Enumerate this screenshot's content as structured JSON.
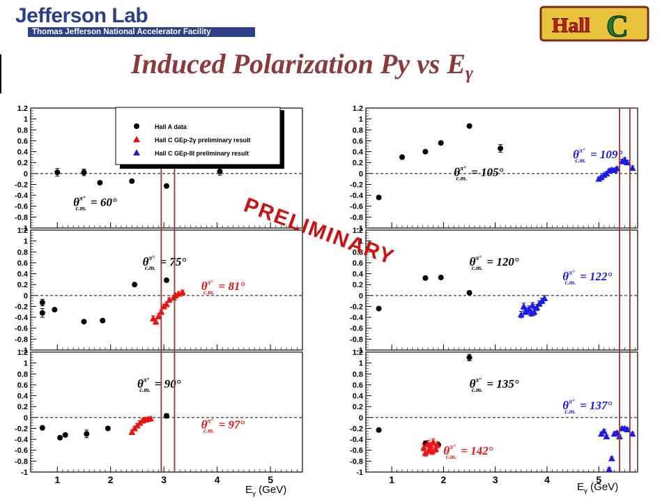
{
  "header": {
    "org_name": "Jefferson Lab",
    "org_subtitle": "Thomas Jefferson National Accelerator Facility",
    "hall_logo_text": "Hall C",
    "title_main": "Induced Polarization Py vs E",
    "title_sub": "γ"
  },
  "watermark": "PRELIMINARY",
  "x_axis_label": {
    "main": "E",
    "sub": "γ",
    "unit": " (GeV)"
  },
  "colors": {
    "hallA": "#000000",
    "gep2g": "#ee1111",
    "gep3": "#1a1ae6",
    "cut_lines": "#a03030",
    "title": "#8a3a3a",
    "watermark": "#cc1111",
    "jlab_blue": "#2b3f8a"
  },
  "legend": {
    "entries": [
      {
        "label": "Hall A data",
        "series": "hallA",
        "marker": "circle"
      },
      {
        "label": "Hall C GEp-2γ preliminary result",
        "series": "gep2g",
        "marker": "triangle"
      },
      {
        "label": "Hall C GEp-III preliminary result",
        "series": "gep3",
        "marker": "triangle"
      }
    ]
  },
  "chart_data": [
    {
      "type": "scatter",
      "xlim": [
        0.5,
        5.6
      ],
      "ylim": [
        -1,
        1.2
      ],
      "yticks": [
        "1.2",
        "1",
        "0.8",
        "0.6",
        "0.4",
        "0.2",
        "0",
        "-0.2",
        "-0.4",
        "-0.6",
        "-0.8",
        "-1"
      ],
      "xticks": [],
      "reference_line_y": 0,
      "cut_lines_x": [
        2.95,
        3.2
      ],
      "angle_labels": [
        {
          "text": "θ",
          "sup": "π°",
          "sub": "c.m.",
          "value": "= 60°",
          "series": "hallA",
          "x": 1.3,
          "y": -0.6
        }
      ],
      "series": [
        {
          "id": "hallA",
          "points": [
            [
              1.0,
              0.02,
              0.07
            ],
            [
              1.5,
              0.02,
              0.06
            ],
            [
              1.8,
              -0.17,
              0.03
            ],
            [
              2.4,
              -0.14,
              0.03
            ],
            [
              3.05,
              -0.23,
              0.03
            ],
            [
              4.05,
              0.04,
              0.07
            ]
          ]
        }
      ]
    },
    {
      "type": "scatter",
      "xlim": [
        0.5,
        5.6
      ],
      "ylim": [
        -1,
        1.2
      ],
      "yticks": [
        "1.2",
        "1",
        "0.8",
        "0.6",
        "0.4",
        "0.2",
        "0",
        "-0.2",
        "-0.4",
        "-0.6",
        "-0.8",
        "-1"
      ],
      "xticks": [],
      "reference_line_y": 0,
      "cut_lines_x": [
        2.95,
        3.2
      ],
      "angle_labels": [
        {
          "text": "θ",
          "sup": "π°",
          "sub": "c.m.",
          "value": "= 75°",
          "series": "hallA",
          "x": 2.6,
          "y": 0.55
        },
        {
          "text": "θ",
          "sup": "π°",
          "sub": "c.m.",
          "value": "= 81°",
          "series": "gep2g",
          "x": 3.7,
          "y": 0.1
        }
      ],
      "series": [
        {
          "id": "hallA",
          "points": [
            [
              0.72,
              -0.13,
              0.06
            ],
            [
              0.72,
              -0.32,
              0.08
            ],
            [
              0.95,
              -0.26,
              0.03
            ],
            [
              1.5,
              -0.48,
              0.03
            ],
            [
              1.85,
              -0.46,
              0.03
            ],
            [
              2.45,
              0.2,
              0.03
            ],
            [
              3.05,
              0.28,
              0.03
            ]
          ]
        },
        {
          "id": "gep2g",
          "points": [
            [
              2.8,
              -0.42,
              0.05
            ],
            [
              2.85,
              -0.48,
              0.05
            ],
            [
              2.9,
              -0.38,
              0.05
            ],
            [
              2.95,
              -0.3,
              0.04
            ],
            [
              3.0,
              -0.2,
              0.04
            ],
            [
              3.05,
              -0.16,
              0.04
            ],
            [
              3.1,
              -0.08,
              0.04
            ],
            [
              3.18,
              -0.04,
              0.04
            ],
            [
              3.22,
              0.0,
              0.04
            ],
            [
              3.28,
              0.03,
              0.04
            ],
            [
              3.35,
              0.06,
              0.04
            ]
          ]
        }
      ]
    },
    {
      "type": "scatter",
      "xlim": [
        0.5,
        5.6
      ],
      "ylim": [
        -1,
        1.2
      ],
      "yticks": [
        "1.2",
        "1",
        "0.8",
        "0.6",
        "0.4",
        "0.2",
        "0",
        "-0.2",
        "-0.4",
        "-0.6",
        "-0.8",
        "-1"
      ],
      "xticks": [
        "1",
        "2",
        "3",
        "4",
        "5"
      ],
      "reference_line_y": 0,
      "cut_lines_x": [
        2.95,
        3.2
      ],
      "angle_labels": [
        {
          "text": "θ",
          "sup": "π°",
          "sub": "c.m.",
          "value": "= 90°",
          "series": "hallA",
          "x": 2.5,
          "y": 0.55
        },
        {
          "text": "θ",
          "sup": "π°",
          "sub": "c.m.",
          "value": "= 97°",
          "series": "gep2g",
          "x": 3.7,
          "y": -0.2
        }
      ],
      "series": [
        {
          "id": "hallA",
          "points": [
            [
              0.72,
              -0.19,
              0.03
            ],
            [
              1.05,
              -0.37,
              0.03
            ],
            [
              1.15,
              -0.32,
              0.03
            ],
            [
              1.55,
              -0.3,
              0.07
            ],
            [
              1.95,
              -0.2,
              0.03
            ],
            [
              3.05,
              0.03,
              0.04
            ]
          ]
        },
        {
          "id": "gep2g",
          "points": [
            [
              2.4,
              -0.27,
              0.04
            ],
            [
              2.45,
              -0.2,
              0.04
            ],
            [
              2.5,
              -0.15,
              0.04
            ],
            [
              2.55,
              -0.1,
              0.04
            ],
            [
              2.6,
              -0.06,
              0.04
            ],
            [
              2.65,
              -0.04,
              0.03
            ],
            [
              2.7,
              -0.03,
              0.03
            ],
            [
              2.75,
              -0.02,
              0.03
            ]
          ]
        }
      ]
    },
    {
      "type": "scatter",
      "xlim": [
        0.5,
        5.75
      ],
      "ylim": [
        -1,
        1.2
      ],
      "yticks": [
        "1.2",
        "1",
        "0.8",
        "0.6",
        "0.4",
        "0.2",
        "0",
        "-0.2",
        "-0.4",
        "-0.6",
        "-0.8",
        "-1"
      ],
      "xticks": [],
      "reference_line_y": 0,
      "cut_lines_x": [
        5.4,
        5.6
      ],
      "angle_labels": [
        {
          "text": "θ",
          "sup": "π°",
          "sub": "c.m.",
          "value": "= 105°",
          "series": "hallA",
          "x": 2.2,
          "y": -0.05
        },
        {
          "text": "θ",
          "sup": "π°",
          "sub": "c.m.",
          "value": "= 109°",
          "series": "gep3",
          "x": 4.5,
          "y": 0.28
        }
      ],
      "series": [
        {
          "id": "hallA",
          "points": [
            [
              0.75,
              -0.44,
              0.03
            ],
            [
              1.2,
              0.3,
              0.03
            ],
            [
              1.65,
              0.4,
              0.03
            ],
            [
              1.95,
              0.56,
              0.03
            ],
            [
              2.5,
              0.87,
              0.03
            ],
            [
              3.1,
              0.46,
              0.07
            ]
          ]
        },
        {
          "id": "gep3",
          "points": [
            [
              5.0,
              -0.1,
              0.03
            ],
            [
              5.05,
              -0.07,
              0.03
            ],
            [
              5.1,
              -0.03,
              0.03
            ],
            [
              5.15,
              0.0,
              0.03
            ],
            [
              5.2,
              0.05,
              0.03
            ],
            [
              5.25,
              0.07,
              0.03
            ],
            [
              5.3,
              0.06,
              0.03
            ],
            [
              5.35,
              0.09,
              0.03
            ],
            [
              5.45,
              0.22,
              0.04
            ],
            [
              5.5,
              0.25,
              0.04
            ],
            [
              5.55,
              0.2,
              0.04
            ],
            [
              5.65,
              0.1,
              0.04
            ]
          ]
        }
      ]
    },
    {
      "type": "scatter",
      "xlim": [
        0.5,
        5.75
      ],
      "ylim": [
        -1,
        1.2
      ],
      "yticks": [
        "1.2",
        "1",
        "0.8",
        "0.6",
        "0.4",
        "0.2",
        "0",
        "-0.2",
        "-0.4",
        "-0.6",
        "-0.8",
        "-1"
      ],
      "xticks": [],
      "reference_line_y": 0,
      "cut_lines_x": [
        5.4,
        5.6
      ],
      "angle_labels": [
        {
          "text": "θ",
          "sup": "π°",
          "sub": "c.m.",
          "value": "= 120°",
          "series": "hallA",
          "x": 2.5,
          "y": 0.55
        },
        {
          "text": "θ",
          "sup": "π°",
          "sub": "c.m.",
          "value": "= 122°",
          "series": "gep3",
          "x": 4.3,
          "y": 0.28
        }
      ],
      "series": [
        {
          "id": "hallA",
          "points": [
            [
              0.75,
              -0.24,
              0.03
            ],
            [
              1.65,
              0.32,
              0.03
            ],
            [
              1.95,
              0.33,
              0.03
            ],
            [
              2.5,
              0.05,
              0.03
            ]
          ]
        },
        {
          "id": "gep3",
          "points": [
            [
              3.5,
              -0.35,
              0.06
            ],
            [
              3.55,
              -0.2,
              0.06
            ],
            [
              3.6,
              -0.28,
              0.06
            ],
            [
              3.65,
              -0.25,
              0.06
            ],
            [
              3.7,
              -0.32,
              0.06
            ],
            [
              3.75,
              -0.3,
              0.06
            ],
            [
              3.8,
              -0.22,
              0.06
            ],
            [
              3.85,
              -0.15,
              0.05
            ],
            [
              3.9,
              -0.1,
              0.05
            ],
            [
              3.95,
              -0.05,
              0.05
            ],
            [
              3.58,
              -0.3,
              0.05
            ],
            [
              3.72,
              -0.18,
              0.05
            ]
          ]
        }
      ]
    },
    {
      "type": "scatter",
      "xlim": [
        0.5,
        5.75
      ],
      "ylim": [
        -1,
        1.2
      ],
      "yticks": [
        "1.2",
        "1",
        "0.8",
        "0.6",
        "0.4",
        "0.2",
        "0",
        "-0.2",
        "-0.4",
        "-0.6",
        "-0.8",
        "-1"
      ],
      "xticks": [
        "1",
        "2",
        "3",
        "4",
        "5"
      ],
      "reference_line_y": 0,
      "cut_lines_x": [
        5.4,
        5.6
      ],
      "angle_labels": [
        {
          "text": "θ",
          "sup": "π°",
          "sub": "c.m.",
          "value": "= 135°",
          "series": "hallA",
          "x": 2.5,
          "y": 0.55
        },
        {
          "text": "θ",
          "sup": "π°",
          "sub": "c.m.",
          "value": "= 142°",
          "series": "gep2g",
          "x": 2.0,
          "y": -0.68
        },
        {
          "text": "θ",
          "sup": "π°",
          "sub": "c.m.",
          "value": "= 137°",
          "series": "gep3",
          "x": 4.3,
          "y": 0.15
        }
      ],
      "series": [
        {
          "id": "hallA",
          "points": [
            [
              0.75,
              -0.23,
              0.03
            ],
            [
              1.65,
              -0.48,
              0.05
            ],
            [
              1.9,
              -0.5,
              0.03
            ],
            [
              2.5,
              1.1,
              0.06
            ]
          ]
        },
        {
          "id": "gep2g",
          "points": [
            [
              1.62,
              -0.55,
              0.06
            ],
            [
              1.65,
              -0.65,
              0.06
            ],
            [
              1.7,
              -0.48,
              0.06
            ],
            [
              1.72,
              -0.6,
              0.06
            ],
            [
              1.75,
              -0.52,
              0.06
            ],
            [
              1.78,
              -0.62,
              0.06
            ],
            [
              1.8,
              -0.45,
              0.06
            ],
            [
              1.85,
              -0.58,
              0.06
            ],
            [
              1.88,
              -0.5,
              0.06
            ]
          ]
        },
        {
          "id": "gep3",
          "points": [
            [
              5.05,
              -0.3,
              0.03
            ],
            [
              5.1,
              -0.25,
              0.03
            ],
            [
              5.15,
              -0.35,
              0.03
            ],
            [
              5.2,
              -0.95,
              0.03
            ],
            [
              5.25,
              -0.75,
              0.03
            ],
            [
              5.3,
              -0.3,
              0.03
            ],
            [
              5.35,
              -0.28,
              0.03
            ],
            [
              5.4,
              -0.35,
              0.03
            ],
            [
              5.45,
              -0.2,
              0.03
            ],
            [
              5.5,
              -0.2,
              0.03
            ],
            [
              5.55,
              -0.22,
              0.03
            ],
            [
              5.65,
              -0.3,
              0.03
            ]
          ]
        }
      ]
    }
  ]
}
